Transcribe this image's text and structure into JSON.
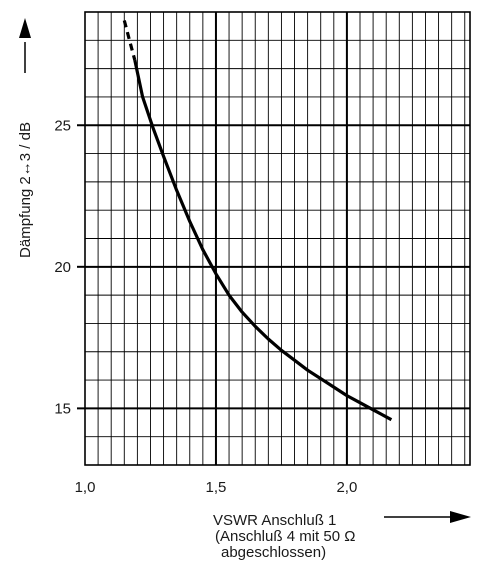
{
  "chart_data": {
    "type": "line",
    "title": "",
    "ylabel": "Dämpfung 2↔3 / dB",
    "xlabel_lines": [
      "VSWR Anschluß 1",
      "(Anschluß 4 mit 50 Ω",
      "abgeschlossen)"
    ],
    "xlim": [
      1.0,
      2.47
    ],
    "ylim": [
      13.0,
      29.0
    ],
    "x_ticks": [
      1.0,
      1.5,
      2.0
    ],
    "x_tick_labels": [
      "1,0",
      "1,5",
      "2,0"
    ],
    "y_ticks": [
      15,
      20,
      25
    ],
    "y_tick_labels": [
      "15",
      "20",
      "25"
    ],
    "grid": true,
    "series": [
      {
        "style": "solid",
        "x": [
          1.19,
          1.22,
          1.26,
          1.3,
          1.35,
          1.4,
          1.45,
          1.5,
          1.55,
          1.6,
          1.65,
          1.7,
          1.75,
          1.8,
          1.85,
          1.9,
          1.95,
          2.0,
          2.05,
          2.1,
          2.17
        ],
        "y": [
          27.3,
          26.0,
          24.9,
          23.9,
          22.7,
          21.6,
          20.6,
          19.75,
          19.0,
          18.4,
          17.9,
          17.45,
          17.05,
          16.7,
          16.35,
          16.05,
          15.75,
          15.45,
          15.2,
          14.95,
          14.6
        ]
      },
      {
        "style": "dashed",
        "x": [
          1.15,
          1.17,
          1.19
        ],
        "y": [
          28.7,
          28.0,
          27.3
        ]
      }
    ]
  }
}
